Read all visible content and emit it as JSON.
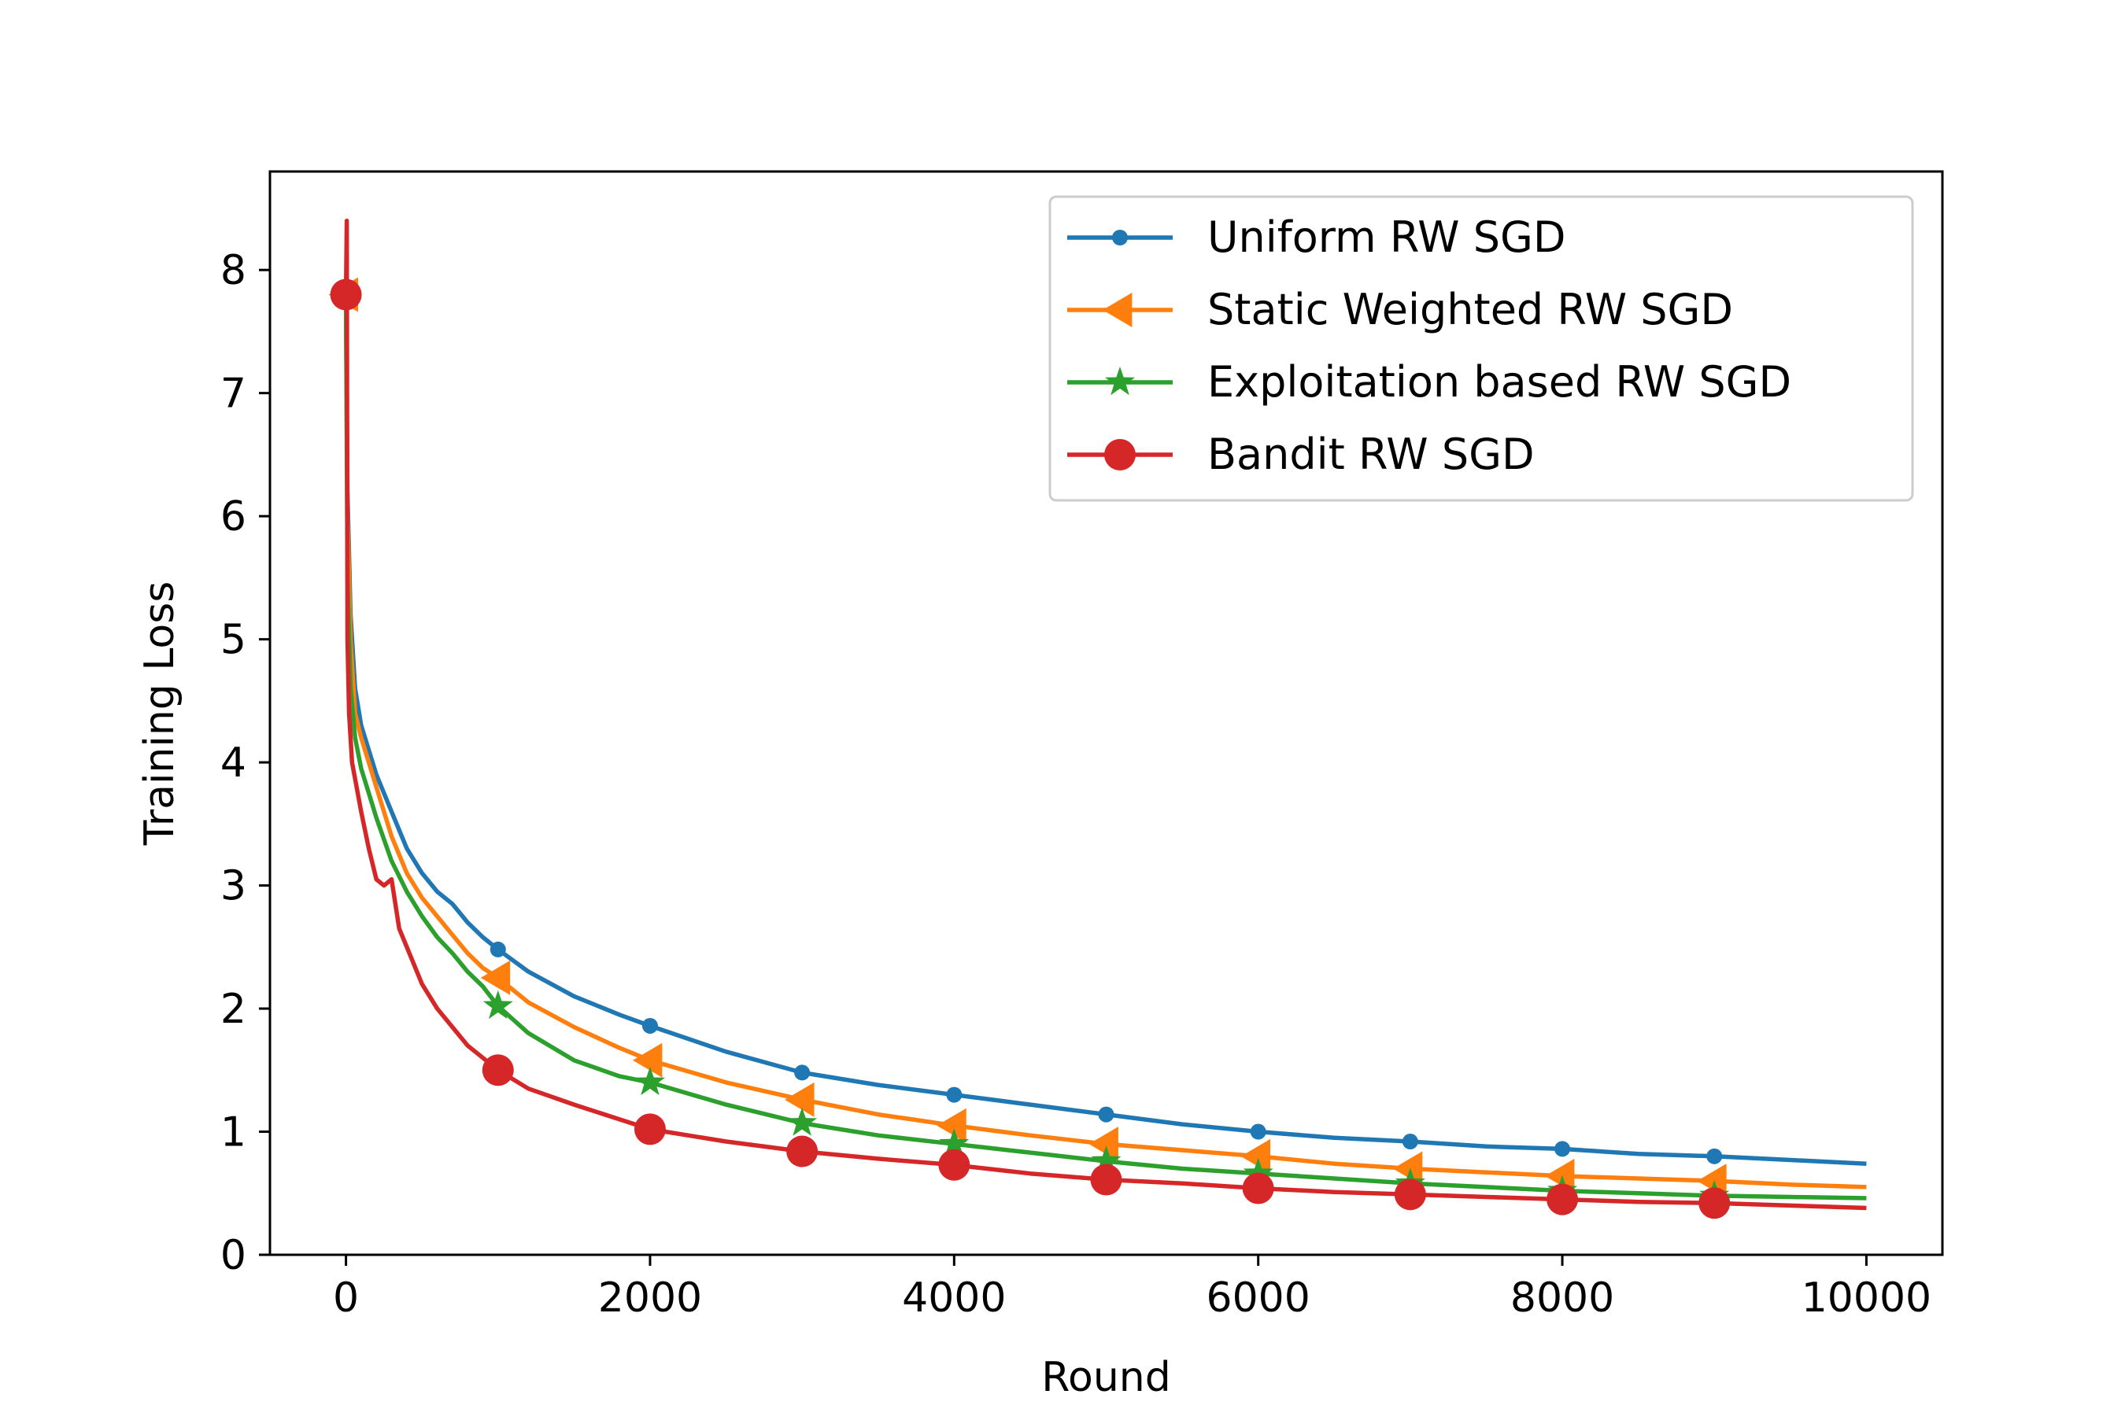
{
  "chart_data": {
    "type": "line",
    "xlabel": "Round",
    "ylabel": "Training Loss",
    "xlim": [
      -500,
      10500
    ],
    "ylim": [
      0,
      8.8
    ],
    "xticks": [
      0,
      2000,
      4000,
      6000,
      8000,
      10000
    ],
    "xtick_labels": [
      "0",
      "2000",
      "4000",
      "6000",
      "8000",
      "10000"
    ],
    "yticks": [
      0,
      1,
      2,
      3,
      4,
      5,
      6,
      7,
      8
    ],
    "ytick_labels": [
      "0",
      "1",
      "2",
      "3",
      "4",
      "5",
      "6",
      "7",
      "8"
    ],
    "grid": false,
    "legend_position": "upper right",
    "series": [
      {
        "name": "Uniform RW SGD",
        "color": "#1f77b4",
        "marker": "point",
        "x": [
          0,
          10,
          30,
          60,
          100,
          150,
          200,
          300,
          400,
          500,
          600,
          700,
          800,
          900,
          1000,
          1200,
          1500,
          1800,
          2000,
          2500,
          3000,
          3500,
          4000,
          4500,
          5000,
          5500,
          6000,
          6500,
          7000,
          7500,
          8000,
          8500,
          9000,
          9500,
          10000
        ],
        "y": [
          7.8,
          6.2,
          5.2,
          4.6,
          4.3,
          4.1,
          3.9,
          3.6,
          3.3,
          3.1,
          2.95,
          2.85,
          2.7,
          2.58,
          2.48,
          2.3,
          2.1,
          1.95,
          1.86,
          1.65,
          1.48,
          1.38,
          1.3,
          1.22,
          1.14,
          1.06,
          1.0,
          0.95,
          0.92,
          0.88,
          0.86,
          0.82,
          0.8,
          0.77,
          0.74
        ]
      },
      {
        "name": "Static Weighted RW SGD",
        "color": "#ff7f0e",
        "marker": "triangle-left",
        "x": [
          0,
          10,
          30,
          60,
          100,
          150,
          200,
          300,
          400,
          500,
          600,
          700,
          800,
          900,
          1000,
          1200,
          1500,
          1800,
          2000,
          2500,
          3000,
          3500,
          4000,
          4500,
          5000,
          5500,
          6000,
          6500,
          7000,
          7500,
          8000,
          8500,
          9000,
          9500,
          10000
        ],
        "y": [
          7.8,
          6.0,
          5.0,
          4.4,
          4.2,
          4.0,
          3.8,
          3.4,
          3.1,
          2.9,
          2.75,
          2.6,
          2.45,
          2.33,
          2.25,
          2.05,
          1.85,
          1.68,
          1.58,
          1.4,
          1.26,
          1.14,
          1.05,
          0.97,
          0.9,
          0.85,
          0.8,
          0.74,
          0.7,
          0.67,
          0.64,
          0.62,
          0.6,
          0.57,
          0.55
        ]
      },
      {
        "name": "Exploitation based RW SGD",
        "color": "#2ca02c",
        "marker": "star",
        "x": [
          0,
          10,
          30,
          60,
          100,
          150,
          200,
          300,
          400,
          500,
          600,
          700,
          800,
          900,
          1000,
          1200,
          1500,
          1800,
          2000,
          2500,
          3000,
          3500,
          4000,
          4500,
          5000,
          5500,
          6000,
          6500,
          7000,
          7500,
          8000,
          8500,
          9000,
          9500,
          10000
        ],
        "y": [
          7.8,
          5.5,
          4.6,
          4.2,
          3.95,
          3.75,
          3.55,
          3.2,
          2.95,
          2.75,
          2.58,
          2.45,
          2.3,
          2.18,
          2.02,
          1.8,
          1.58,
          1.45,
          1.4,
          1.22,
          1.07,
          0.97,
          0.9,
          0.83,
          0.76,
          0.7,
          0.66,
          0.62,
          0.58,
          0.55,
          0.52,
          0.5,
          0.48,
          0.47,
          0.46
        ]
      },
      {
        "name": "Bandit RW SGD",
        "color": "#d62728",
        "marker": "circle",
        "x": [
          0,
          5,
          10,
          20,
          40,
          70,
          100,
          150,
          200,
          250,
          300,
          350,
          400,
          500,
          600,
          700,
          800,
          900,
          1000,
          1200,
          1500,
          1800,
          2000,
          2500,
          3000,
          3500,
          4000,
          4500,
          5000,
          5500,
          6000,
          6500,
          7000,
          7500,
          8000,
          8500,
          9000,
          9500,
          10000
        ],
        "y": [
          7.8,
          8.4,
          5.0,
          4.4,
          4.0,
          3.8,
          3.6,
          3.3,
          3.05,
          3.0,
          3.05,
          2.65,
          2.5,
          2.2,
          2.0,
          1.85,
          1.7,
          1.6,
          1.5,
          1.35,
          1.22,
          1.1,
          1.02,
          0.92,
          0.84,
          0.78,
          0.73,
          0.66,
          0.61,
          0.58,
          0.54,
          0.51,
          0.49,
          0.47,
          0.45,
          0.43,
          0.42,
          0.4,
          0.38
        ]
      }
    ],
    "markers_at_x": [
      0,
      1000,
      2000,
      3000,
      4000,
      5000,
      6000,
      7000,
      8000,
      9000
    ]
  }
}
